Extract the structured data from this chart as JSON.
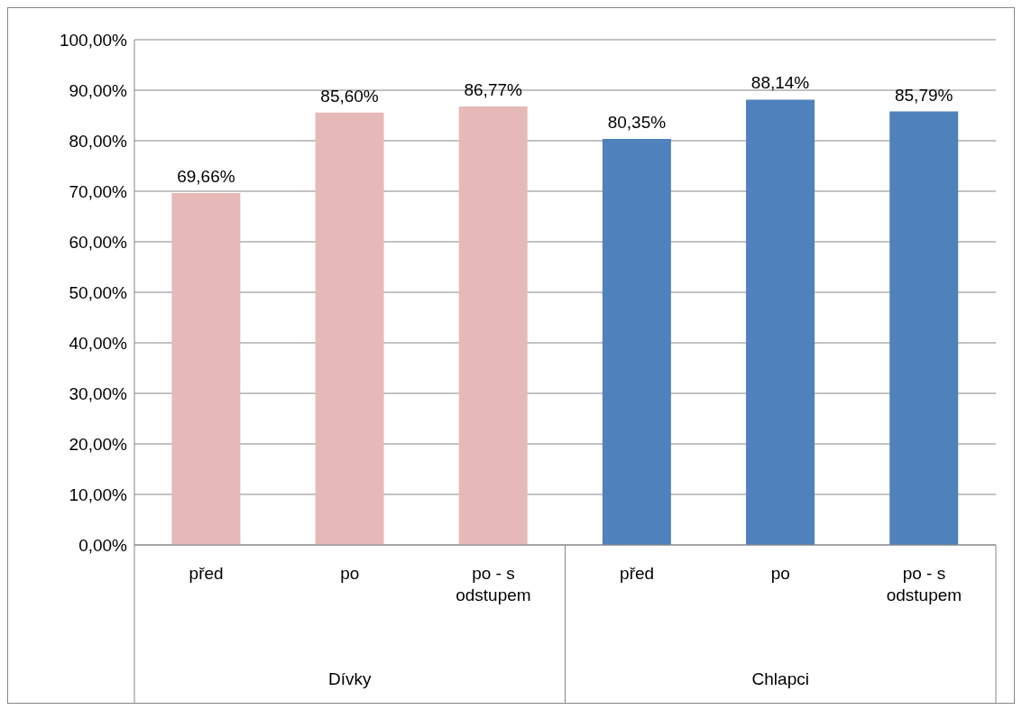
{
  "chart_data": {
    "type": "bar",
    "categories": [
      "před",
      "po",
      "po - s odstupem",
      "před",
      "po",
      "po - s odstupem"
    ],
    "values": [
      69.66,
      85.6,
      86.77,
      80.35,
      88.14,
      85.79
    ],
    "colors": [
      "#e6b9b8",
      "#e6b9b8",
      "#e6b9b8",
      "#4f81bd",
      "#4f81bd",
      "#4f81bd"
    ],
    "value_labels": [
      "69,66%",
      "85,60%",
      "86,77%",
      "80,35%",
      "88,14%",
      "85,79%"
    ],
    "annotations": [
      "Dívky",
      "Chlapci"
    ],
    "ylim": [
      0,
      100
    ],
    "yticks": [
      {
        "value": 0,
        "label": "0,00%"
      },
      {
        "value": 10,
        "label": "10,00%"
      },
      {
        "value": 20,
        "label": "20,00%"
      },
      {
        "value": 30,
        "label": "30,00%"
      },
      {
        "value": 40,
        "label": "40,00%"
      },
      {
        "value": 50,
        "label": "50,00%"
      },
      {
        "value": 60,
        "label": "60,00%"
      },
      {
        "value": 70,
        "label": "70,00%"
      },
      {
        "value": 80,
        "label": "80,00%"
      },
      {
        "value": 90,
        "label": "90,00%"
      },
      {
        "value": 100,
        "label": "100,00%"
      }
    ],
    "grid": "y"
  }
}
